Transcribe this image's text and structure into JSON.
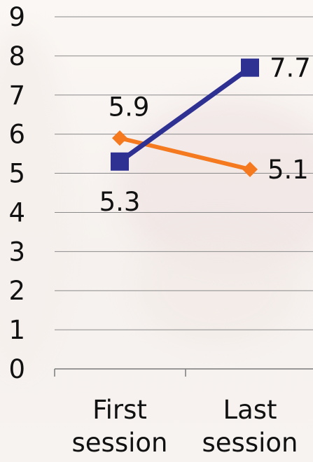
{
  "chart_data": {
    "type": "line",
    "categories": [
      "First session",
      "Last session"
    ],
    "category_lines": [
      [
        "First",
        "session"
      ],
      [
        "Last",
        "session"
      ]
    ],
    "series": [
      {
        "values": [
          5.3,
          7.7
        ],
        "data_labels": [
          "5.3",
          "7.7"
        ],
        "color": "#2e3192",
        "marker": "square"
      },
      {
        "values": [
          5.9,
          5.1
        ],
        "data_labels": [
          "5.9",
          "5.1"
        ],
        "color": "#f4791f",
        "marker": "diamond"
      }
    ],
    "y_ticks": [
      "0",
      "1",
      "2",
      "3",
      "4",
      "5",
      "6",
      "7",
      "8",
      "9"
    ],
    "ylim": [
      0,
      9
    ],
    "grid": true,
    "title": "",
    "xlabel": "",
    "ylabel": ""
  }
}
